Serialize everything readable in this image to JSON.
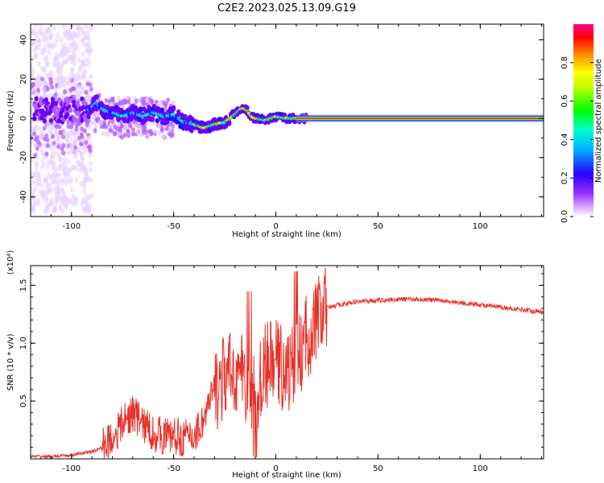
{
  "title": "C2E2.2023.025.13.09.G19",
  "chart_data": [
    {
      "type": "heatmap",
      "xlabel": "Height of straight line (km)",
      "ylabel": "Frequency (Hz)",
      "xlim": [
        -120,
        131
      ],
      "ylim": [
        -50,
        48
      ],
      "xticks": [
        -100,
        -50,
        0,
        50,
        100
      ],
      "yticks": [
        -40,
        -20,
        0,
        20,
        40
      ],
      "colorbar": {
        "label": "Normalized spectral amplitude",
        "range": [
          0,
          1
        ],
        "ticks": [
          "0.0",
          "0.2",
          "0.4",
          "0.6",
          "0.8"
        ],
        "colors": [
          "#ffffff",
          "#c070ff",
          "#6a00ff",
          "#0000ff",
          "#00ffff",
          "#00ff00",
          "#ffff00",
          "#ff7f00",
          "#ff0000",
          "#ff0088"
        ]
      },
      "ridge": {
        "x": [
          -92,
          -88,
          -84,
          -80,
          -75,
          -70,
          -65,
          -60,
          -55,
          -50,
          -45,
          -40,
          -35,
          -30,
          -25,
          -20,
          -17,
          -15,
          -12,
          -10,
          -5,
          0,
          5,
          10,
          15,
          20,
          40,
          60,
          80,
          100,
          131
        ],
        "y": [
          4,
          8,
          4,
          3,
          1,
          3,
          1,
          3,
          1,
          2,
          -2,
          -3,
          -5,
          -3,
          -2,
          2,
          5,
          5,
          1,
          0,
          -1,
          1,
          0,
          0,
          0,
          0,
          0,
          0,
          0,
          0,
          0
        ]
      }
    },
    {
      "type": "line",
      "xlabel": "Height of straight line (km)",
      "ylabel": "SNR (10 * v/v)",
      "yscale_label": "(x10⁴)",
      "xlim": [
        -120,
        131
      ],
      "ylim": [
        0,
        1.67
      ],
      "xticks": [
        -100,
        -50,
        0,
        50,
        100
      ],
      "yticks": [
        0.5,
        1.0,
        1.5
      ],
      "ytick_labels": [
        "0.5",
        "1.0",
        "1.5"
      ],
      "series": [
        {
          "color": "#e8312a",
          "x": [
            -120,
            -110,
            -100,
            -95,
            -90,
            -85,
            -80,
            -75,
            -70,
            -65,
            -60,
            -55,
            -50,
            -45,
            -40,
            -35,
            -30,
            -25,
            -20,
            -15,
            -10,
            -5,
            0,
            5,
            10,
            15,
            20,
            25,
            30,
            40,
            50,
            60,
            70,
            80,
            90,
            100,
            110,
            120,
            131
          ],
          "y": [
            0.02,
            0.02,
            0.03,
            0.05,
            0.06,
            0.1,
            0.18,
            0.3,
            0.4,
            0.3,
            0.22,
            0.2,
            0.2,
            0.18,
            0.2,
            0.35,
            0.6,
            0.7,
            0.75,
            0.7,
            0.55,
            0.8,
            0.85,
            0.75,
            0.8,
            1.05,
            1.2,
            1.3,
            1.33,
            1.36,
            1.37,
            1.38,
            1.38,
            1.37,
            1.35,
            1.33,
            1.31,
            1.29,
            1.27
          ]
        }
      ]
    }
  ]
}
